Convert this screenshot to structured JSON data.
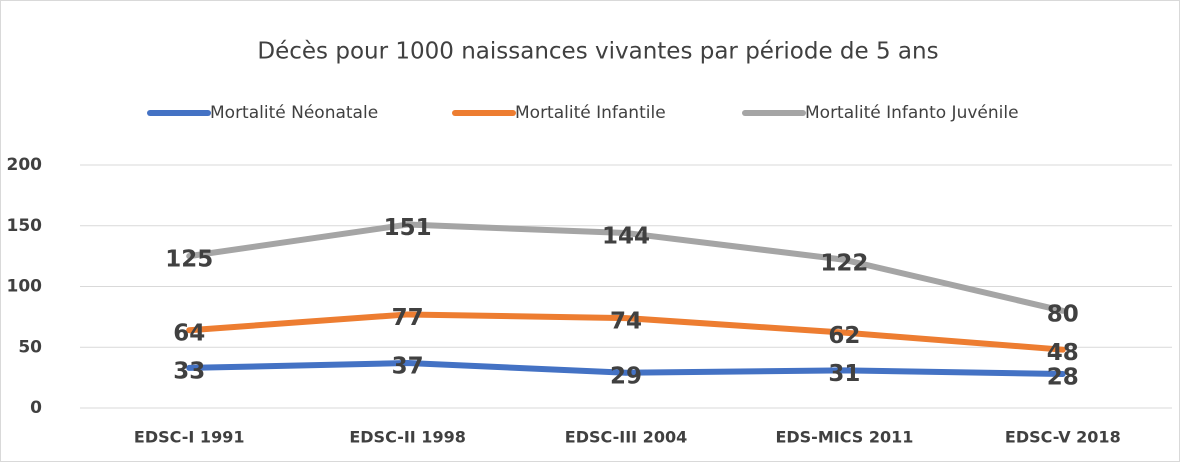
{
  "chart_data": {
    "type": "line",
    "title": "Décès pour 1000 naissances vivantes par période de 5 ans",
    "categories": [
      "EDSC-I 1991",
      "EDSC-II 1998",
      "EDSC-III 2004",
      "EDS-MICS 2011",
      "EDSC-V 2018"
    ],
    "series": [
      {
        "name": "Mortalité Néonatale",
        "color": "#4472c4",
        "values": [
          33,
          37,
          29,
          31,
          28
        ]
      },
      {
        "name": "Mortalité Infantile",
        "color": "#ed7d31",
        "values": [
          64,
          77,
          74,
          62,
          48
        ]
      },
      {
        "name": "Mortalité Infanto Juvénile",
        "color": "#a5a5a5",
        "values": [
          125,
          151,
          144,
          122,
          80
        ]
      }
    ],
    "ylim": [
      0,
      200
    ],
    "yticks": [
      0,
      50,
      100,
      150,
      200
    ],
    "grid": true,
    "legend": "top"
  }
}
